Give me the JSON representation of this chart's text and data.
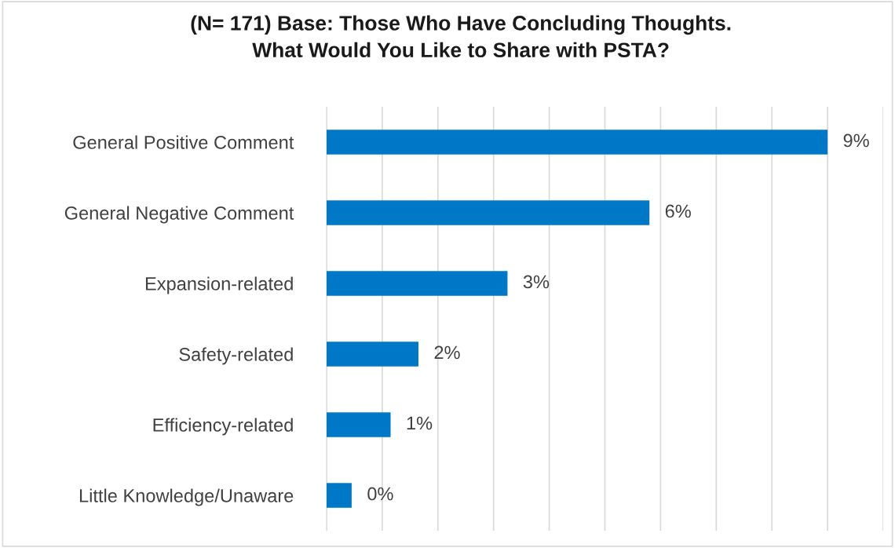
{
  "chart_data": {
    "type": "bar",
    "orientation": "horizontal",
    "xlim": [
      0,
      10
    ],
    "xticks": [
      {
        "value": 0,
        "label": null
      },
      {
        "value": 1,
        "label": null
      },
      {
        "value": 2,
        "label": null
      },
      {
        "value": 3,
        "label": null
      },
      {
        "value": 4,
        "label": null
      },
      {
        "value": 5,
        "label": null
      },
      {
        "value": 6,
        "label": null
      },
      {
        "value": 7,
        "label": null
      },
      {
        "value": 8,
        "label": null
      },
      {
        "value": 9,
        "label": null
      },
      {
        "value": 10,
        "label": null
      }
    ],
    "tick_labels": "y",
    "title": "(N= 171) Base: Those Who Have Concluding Thoughts.\nWhat Would You Like to Share with PSTA?",
    "categories": [
      "General Positive Comment",
      "General Negative Comment",
      "Expansion-related",
      "Safety-related",
      "Efficiency-related",
      "Little Knowledge/Unaware"
    ],
    "values": [
      9.0,
      5.8,
      3.25,
      1.65,
      1.15,
      0.45
    ],
    "value_labels": [
      "9%",
      "6%",
      "3%",
      "2%",
      "1%",
      "0%"
    ],
    "color": "#0078c8",
    "grid": "x",
    "legend": false
  }
}
